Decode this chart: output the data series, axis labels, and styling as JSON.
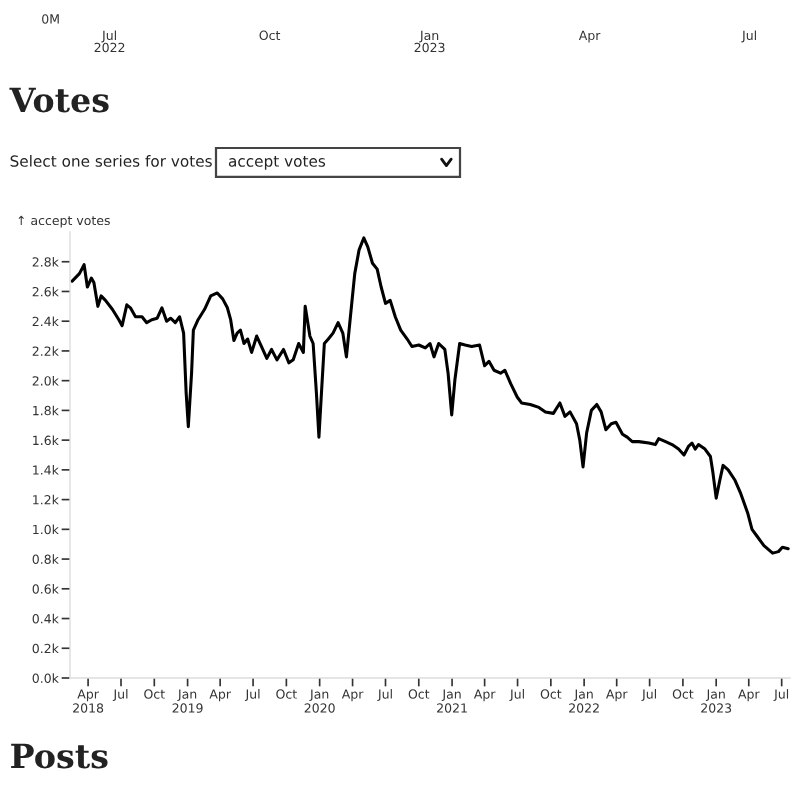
{
  "chart_data": [
    {
      "type": "other",
      "annotations": [
        "0M",
        "Jul\n2022",
        "Oct",
        "Jan\n2023",
        "Apr",
        "Jul"
      ]
    },
    {
      "type": "line",
      "title": "Votes",
      "ylabel": "↑ accept votes",
      "annotations": [
        "Select one series for votes",
        "accept votes",
        "Posts"
      ],
      "xlim": [
        "2018-02-10",
        "2023-07-24"
      ],
      "ylim": [
        0,
        3000
      ],
      "xticks": [
        {
          "value": "2018-04-01",
          "label": "Apr\n2018"
        },
        {
          "value": "2018-07-01",
          "label": "Jul"
        },
        {
          "value": "2018-10-01",
          "label": "Oct"
        },
        {
          "value": "2019-01-01",
          "label": "Jan\n2019"
        },
        {
          "value": "2019-04-01",
          "label": "Apr"
        },
        {
          "value": "2019-07-01",
          "label": "Jul"
        },
        {
          "value": "2019-10-01",
          "label": "Oct"
        },
        {
          "value": "2020-01-01",
          "label": "Jan\n2020"
        },
        {
          "value": "2020-04-01",
          "label": "Apr"
        },
        {
          "value": "2020-07-01",
          "label": "Jul"
        },
        {
          "value": "2020-10-01",
          "label": "Oct"
        },
        {
          "value": "2021-01-01",
          "label": "Jan\n2021"
        },
        {
          "value": "2021-04-01",
          "label": "Apr"
        },
        {
          "value": "2021-07-01",
          "label": "Jul"
        },
        {
          "value": "2021-10-01",
          "label": "Oct"
        },
        {
          "value": "2022-01-01",
          "label": "Jan\n2022"
        },
        {
          "value": "2022-04-01",
          "label": "Apr"
        },
        {
          "value": "2022-07-01",
          "label": "Jul"
        },
        {
          "value": "2022-10-01",
          "label": "Oct"
        },
        {
          "value": "2023-01-01",
          "label": "Jan\n2023"
        },
        {
          "value": "2023-04-01",
          "label": "Apr"
        },
        {
          "value": "2023-07-01",
          "label": "Jul"
        }
      ],
      "yticks": [
        {
          "value": 0,
          "label": "0.0k"
        },
        {
          "value": 200,
          "label": "0.2k"
        },
        {
          "value": 400,
          "label": "0.4k"
        },
        {
          "value": 600,
          "label": "0.6k"
        },
        {
          "value": 800,
          "label": "0.8k"
        },
        {
          "value": 1000,
          "label": "1.0k"
        },
        {
          "value": 1200,
          "label": "1.2k"
        },
        {
          "value": 1400,
          "label": "1.4k"
        },
        {
          "value": 1600,
          "label": "1.6k"
        },
        {
          "value": 1800,
          "label": "1.8k"
        },
        {
          "value": 2000,
          "label": "2.0k"
        },
        {
          "value": 2200,
          "label": "2.2k"
        },
        {
          "value": 2400,
          "label": "2.4k"
        },
        {
          "value": 2600,
          "label": "2.6k"
        },
        {
          "value": 2800,
          "label": "2.8k"
        }
      ],
      "marker": "none",
      "series": [
        {
          "color": "#000000",
          "x": [
            "2018-02-16",
            "2018-03-08",
            "2018-03-21",
            "2018-03-30",
            "2018-04-10",
            "2018-04-17",
            "2018-04-28",
            "2018-05-07",
            "2018-05-19",
            "2018-06-07",
            "2018-06-25",
            "2018-07-04",
            "2018-07-17",
            "2018-07-27",
            "2018-08-10",
            "2018-08-28",
            "2018-09-10",
            "2018-09-24",
            "2018-10-09",
            "2018-10-22",
            "2018-11-04",
            "2018-11-15",
            "2018-11-28",
            "2018-12-10",
            "2018-12-21",
            "2018-12-28",
            "2019-01-03",
            "2019-01-12",
            "2019-01-17",
            "2019-01-30",
            "2019-02-17",
            "2019-03-06",
            "2019-03-24",
            "2019-04-08",
            "2019-04-21",
            "2019-04-30",
            "2019-05-09",
            "2019-05-18",
            "2019-05-27",
            "2019-06-06",
            "2019-06-16",
            "2019-06-27",
            "2019-07-11",
            "2019-07-24",
            "2019-08-08",
            "2019-08-21",
            "2019-09-05",
            "2019-09-23",
            "2019-10-08",
            "2019-10-20",
            "2019-11-04",
            "2019-11-17",
            "2019-11-22",
            "2019-12-05",
            "2019-12-14",
            "2019-12-23",
            "2019-12-30",
            "2020-01-07",
            "2020-01-14",
            "2020-01-25",
            "2020-02-07",
            "2020-02-21",
            "2020-03-05",
            "2020-03-15",
            "2020-03-26",
            "2020-04-07",
            "2020-04-19",
            "2020-05-02",
            "2020-05-13",
            "2020-05-26",
            "2020-06-08",
            "2020-06-19",
            "2020-07-01",
            "2020-07-14",
            "2020-07-28",
            "2020-08-12",
            "2020-08-30",
            "2020-09-12",
            "2020-10-01",
            "2020-10-19",
            "2020-11-01",
            "2020-11-12",
            "2020-11-25",
            "2020-12-12",
            "2020-12-21",
            "2020-12-31",
            "2021-01-09",
            "2021-01-22",
            "2021-02-06",
            "2021-02-24",
            "2021-03-18",
            "2021-04-01",
            "2021-04-13",
            "2021-04-27",
            "2021-05-15",
            "2021-05-27",
            "2021-06-12",
            "2021-06-30",
            "2021-07-12",
            "2021-08-05",
            "2021-08-29",
            "2021-09-16",
            "2021-10-08",
            "2021-10-26",
            "2021-11-09",
            "2021-11-23",
            "2021-12-11",
            "2021-12-20",
            "2021-12-29",
            "2022-01-08",
            "2022-01-21",
            "2022-02-05",
            "2022-02-17",
            "2022-03-02",
            "2022-03-17",
            "2022-03-30",
            "2022-04-17",
            "2022-04-30",
            "2022-05-14",
            "2022-06-01",
            "2022-06-29",
            "2022-07-17",
            "2022-07-26",
            "2022-08-14",
            "2022-09-01",
            "2022-09-19",
            "2022-10-04",
            "2022-10-17",
            "2022-10-26",
            "2022-11-04",
            "2022-11-13",
            "2022-12-01",
            "2022-12-16",
            "2022-12-23",
            "2023-01-01",
            "2023-01-11",
            "2023-01-20",
            "2023-02-03",
            "2023-02-22",
            "2023-03-10",
            "2023-03-29",
            "2023-04-10",
            "2023-04-25",
            "2023-05-13",
            "2023-06-06",
            "2023-06-22",
            "2023-07-03",
            "2023-07-19"
          ],
          "values": [
            2670,
            2720,
            2780,
            2630,
            2690,
            2660,
            2500,
            2570,
            2540,
            2480,
            2410,
            2370,
            2510,
            2490,
            2430,
            2430,
            2390,
            2410,
            2420,
            2490,
            2400,
            2420,
            2390,
            2430,
            2320,
            1920,
            1690,
            2050,
            2340,
            2410,
            2480,
            2570,
            2590,
            2550,
            2490,
            2410,
            2270,
            2320,
            2340,
            2250,
            2280,
            2190,
            2300,
            2230,
            2150,
            2210,
            2140,
            2210,
            2120,
            2140,
            2250,
            2190,
            2500,
            2300,
            2250,
            1920,
            1620,
            1960,
            2250,
            2280,
            2320,
            2390,
            2320,
            2160,
            2430,
            2720,
            2880,
            2960,
            2900,
            2790,
            2750,
            2630,
            2520,
            2540,
            2430,
            2340,
            2280,
            2230,
            2240,
            2220,
            2250,
            2160,
            2250,
            2210,
            2050,
            1770,
            2010,
            2250,
            2240,
            2230,
            2240,
            2100,
            2130,
            2070,
            2050,
            2070,
            1980,
            1890,
            1850,
            1840,
            1820,
            1790,
            1780,
            1850,
            1760,
            1790,
            1710,
            1600,
            1420,
            1650,
            1800,
            1840,
            1790,
            1670,
            1710,
            1720,
            1640,
            1620,
            1590,
            1590,
            1580,
            1570,
            1610,
            1590,
            1570,
            1540,
            1500,
            1560,
            1580,
            1540,
            1570,
            1540,
            1490,
            1380,
            1210,
            1330,
            1430,
            1400,
            1330,
            1240,
            1110,
            1000,
            950,
            890,
            840,
            850,
            880,
            870
          ]
        }
      ]
    }
  ]
}
